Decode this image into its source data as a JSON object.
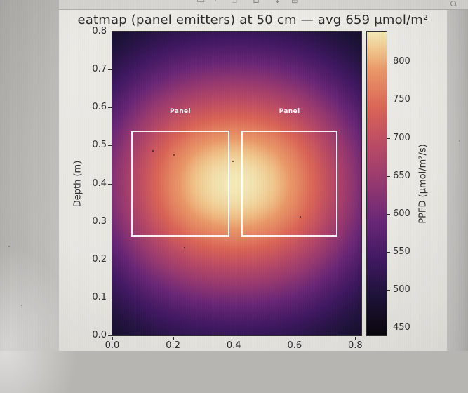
{
  "toolbar": {
    "partial_icons": [
      {
        "name": "window-icon",
        "glyph": "▭"
      },
      {
        "name": "bracket-icon",
        "glyph": "⌐"
      },
      {
        "name": "cell-icon",
        "glyph": "⌸"
      },
      {
        "name": "union-icon",
        "glyph": "⊔"
      },
      {
        "name": "download-icon",
        "glyph": "↓"
      },
      {
        "name": "grid-icon",
        "glyph": "⊞"
      }
    ]
  },
  "chart_data": {
    "type": "heatmap",
    "title": "eatmap (panel emitters) at 50 cm — avg 659 μmol/m²",
    "xlabel": "",
    "ylabel": "Depth (m)",
    "colorbar_label": "PPFD (μmol/m²/s)",
    "x_ticks": [
      0.0,
      0.2,
      0.4,
      0.6,
      0.8
    ],
    "y_ticks": [
      0.0,
      0.1,
      0.2,
      0.3,
      0.4,
      0.5,
      0.6,
      0.7,
      0.8
    ],
    "xlim": [
      0,
      0.82
    ],
    "ylim": [
      0,
      0.8
    ],
    "colorbar_ticks": [
      450,
      500,
      550,
      600,
      650,
      700,
      750,
      800
    ],
    "value_range": [
      440,
      840
    ],
    "avg_value": 659,
    "colormap": "magma",
    "grid": false,
    "panels": [
      {
        "label": "Panel",
        "x0": 0.062,
        "x1": 0.386,
        "y0": 0.26,
        "y1": 0.54,
        "label_y": 0.578
      },
      {
        "label": "Panel",
        "x0": 0.425,
        "x1": 0.742,
        "y0": 0.26,
        "y1": 0.54,
        "label_y": 0.578
      }
    ],
    "emitters": [
      {
        "cx": 0.224,
        "cy": 0.4
      },
      {
        "cx": 0.584,
        "cy": 0.4
      }
    ],
    "gaussian_sigma": 0.23,
    "magma_stops": [
      [
        0.0,
        10,
        7,
        12
      ],
      [
        0.125,
        28,
        18,
        56
      ],
      [
        0.25,
        64,
        24,
        98
      ],
      [
        0.375,
        104,
        38,
        118
      ],
      [
        0.5,
        150,
        56,
        112
      ],
      [
        0.625,
        186,
        74,
        101
      ],
      [
        0.75,
        218,
        100,
        86
      ],
      [
        0.875,
        234,
        152,
        104
      ],
      [
        0.94,
        240,
        198,
        140
      ],
      [
        1.0,
        243,
        234,
        184
      ]
    ]
  },
  "colors": {
    "panel_outline": "#ffffff",
    "figure_bg": "#eae8e3",
    "axis_text": "#2e2e2e"
  }
}
